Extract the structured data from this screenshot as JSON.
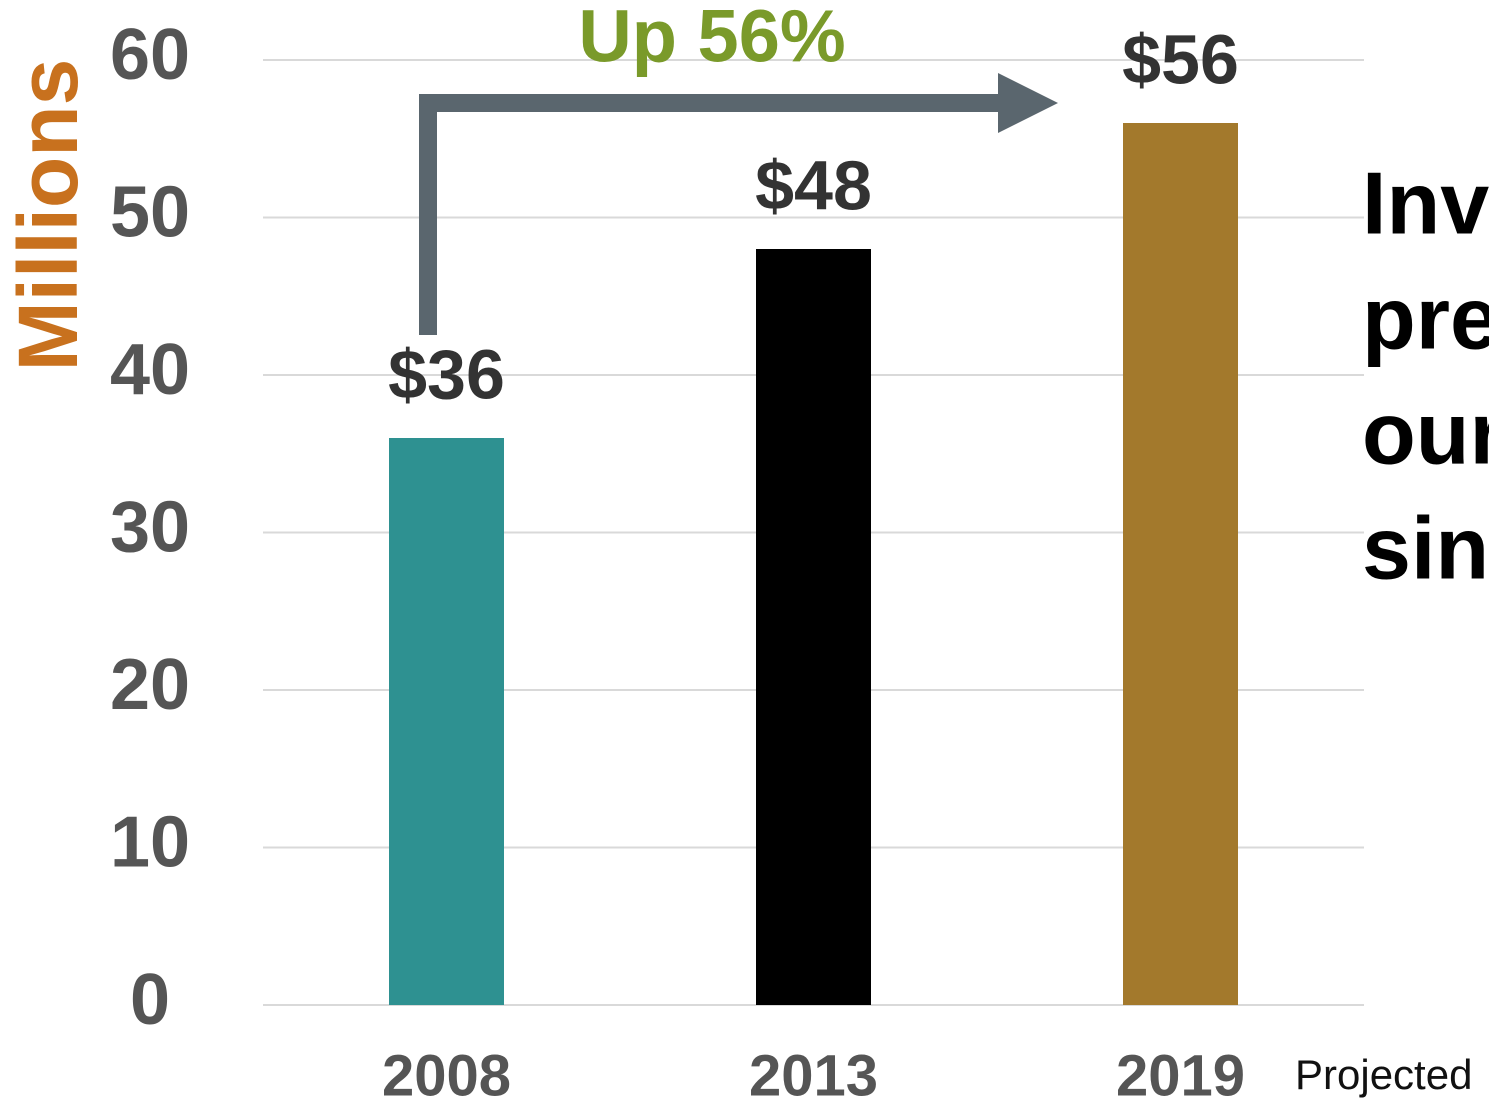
{
  "chart_data": {
    "type": "bar",
    "y_axis_label": "Millions",
    "annotation": "Up 56%",
    "note": "Projected",
    "side_text": [
      "Inve",
      "prev",
      "our",
      "sinc"
    ],
    "categories": [
      "2008",
      "2013",
      "2019"
    ],
    "values": [
      36,
      48,
      56
    ],
    "value_labels": [
      "$36",
      "$48",
      "$56"
    ],
    "colors": [
      "#2e9191",
      "#000000",
      "#a3792c"
    ],
    "ylim": [
      0,
      60
    ],
    "yticks": [
      0,
      10,
      20,
      30,
      40,
      50,
      60
    ],
    "grid": true
  }
}
